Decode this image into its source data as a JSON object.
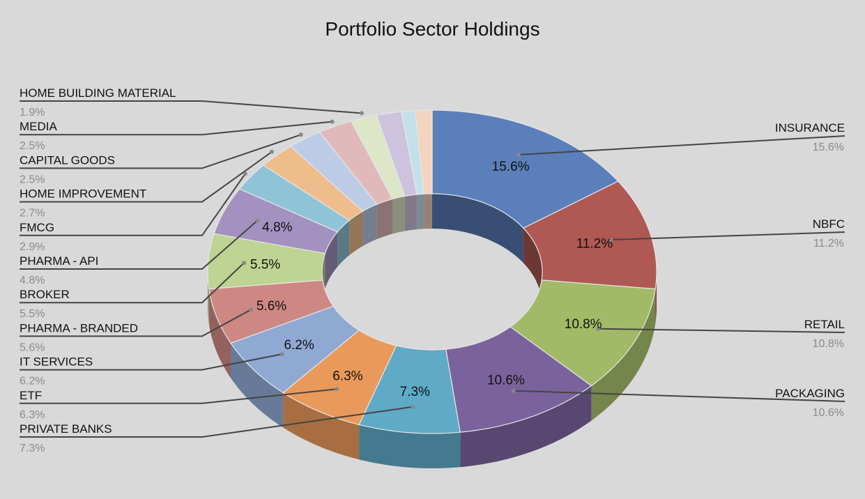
{
  "chart_data": {
    "type": "pie",
    "variant": "3d-donut",
    "title": "Portfolio Sector Holdings",
    "slices": [
      {
        "name": "INSURANCE",
        "value": 15.6,
        "label": "15.6%",
        "color": "#5b7fba"
      },
      {
        "name": "NBFC",
        "value": 11.2,
        "label": "11.2%",
        "color": "#b05853"
      },
      {
        "name": "RETAIL",
        "value": 10.8,
        "label": "10.8%",
        "color": "#a2ba67"
      },
      {
        "name": "PACKAGING",
        "value": 10.6,
        "label": "10.6%",
        "color": "#7a639c"
      },
      {
        "name": "PRIVATE BANKS",
        "value": 7.3,
        "label": "7.3%",
        "color": "#5faac6"
      },
      {
        "name": "ETF",
        "value": 6.3,
        "label": "6.3%",
        "color": "#e9995a"
      },
      {
        "name": "IT SERVICES",
        "value": 6.2,
        "label": "6.2%",
        "color": "#8fa9d3"
      },
      {
        "name": "PHARMA - BRANDED",
        "value": 5.6,
        "label": "5.6%",
        "color": "#cd8883"
      },
      {
        "name": "BROKER",
        "value": 5.5,
        "label": "5.5%",
        "color": "#bfd392"
      },
      {
        "name": "PHARMA - API",
        "value": 4.8,
        "label": "4.8%",
        "color": "#a392c0"
      },
      {
        "name": "FMCG",
        "value": 2.9,
        "label": "2.9%",
        "color": "#8fc4d6"
      },
      {
        "name": "HOME IMPROVEMENT",
        "value": 2.7,
        "label": "2.7%",
        "color": "#efbc8c"
      },
      {
        "name": "CAPITAL GOODS",
        "value": 2.5,
        "label": "2.5%",
        "color": "#bccce6"
      },
      {
        "name": "MEDIA",
        "value": 2.5,
        "label": "2.5%",
        "color": "#e0baba"
      },
      {
        "name": "HOME BUILDING MATERIAL",
        "value": 1.9,
        "label": "1.9%",
        "color": "#dde6c7"
      },
      {
        "name": "",
        "value": 1.8,
        "label": "",
        "color": "#cdc3de"
      },
      {
        "name": "",
        "value": 1.0,
        "label": "",
        "color": "#c4e0ea"
      },
      {
        "name": "",
        "value": 1.2,
        "label": "",
        "color": "#f3d4bf"
      }
    ],
    "inner_labels_for_first": 10,
    "legend": "callout labels left and right"
  }
}
